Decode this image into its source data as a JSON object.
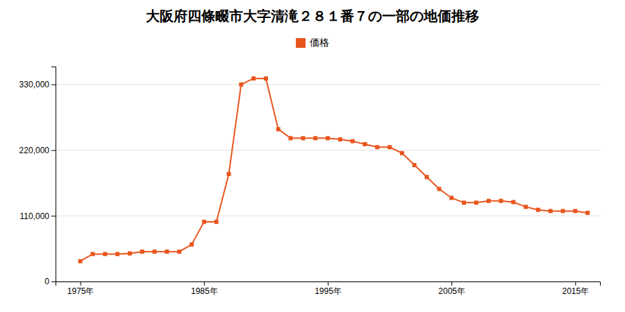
{
  "chart_data": {
    "type": "line",
    "title": "大阪府四條畷市大字清滝２８１番７の一部の地価推移",
    "x": [
      1975,
      1976,
      1977,
      1978,
      1979,
      1980,
      1981,
      1982,
      1983,
      1984,
      1985,
      1986,
      1987,
      1988,
      1989,
      1990,
      1991,
      1992,
      1993,
      1994,
      1995,
      1996,
      1997,
      1998,
      1999,
      2000,
      2001,
      2002,
      2003,
      2004,
      2005,
      2006,
      2007,
      2008,
      2009,
      2010,
      2011,
      2012,
      2013,
      2014,
      2015,
      2016
    ],
    "series": [
      {
        "name": "価格",
        "color": "#e8561e",
        "marker": "square",
        "values": [
          34000,
          46000,
          46000,
          46000,
          47000,
          50000,
          50000,
          50000,
          50000,
          62000,
          100000,
          100000,
          180000,
          330000,
          340000,
          340000,
          255000,
          240000,
          240000,
          240000,
          240000,
          238000,
          235000,
          230000,
          225000,
          225000,
          215000,
          195000,
          175000,
          155000,
          140000,
          132000,
          132000,
          135000,
          135000,
          133000,
          125000,
          120000,
          118000,
          118000,
          118000,
          115000
        ]
      }
    ],
    "xlim": [
      1973,
      2017
    ],
    "xticks": [
      {
        "value": 1975,
        "label": "1975年"
      },
      {
        "value": 1985,
        "label": "1985年"
      },
      {
        "value": 1995,
        "label": "1995年"
      },
      {
        "value": 2005,
        "label": "2005年"
      },
      {
        "value": 2015,
        "label": "2015年"
      }
    ],
    "ylim": [
      0,
      360000
    ],
    "yticks": [
      0,
      {
        "value": 110000,
        "label": "110,000"
      },
      {
        "value": 220000,
        "label": "220,000"
      },
      {
        "value": 330000,
        "label": "330,000"
      }
    ],
    "grid": "y",
    "legend": "top"
  }
}
